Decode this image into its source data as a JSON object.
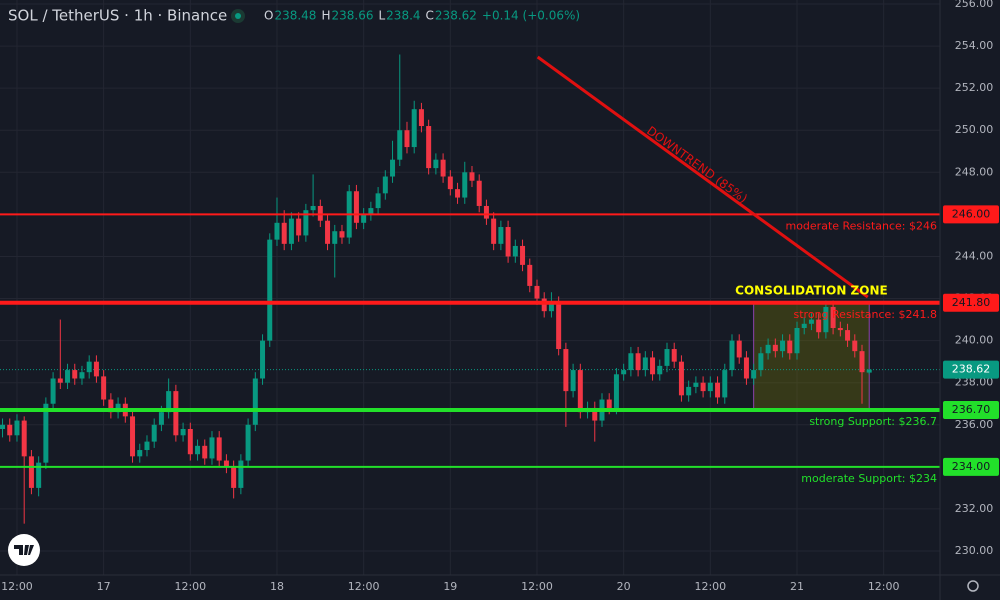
{
  "header": {
    "symbol": "SOL / TetherUS · 1h · Binance",
    "ohlc": [
      {
        "label": "O",
        "value": 238.48
      },
      {
        "label": "H",
        "value": 238.66
      },
      {
        "label": "L",
        "value": 238.4
      },
      {
        "label": "C",
        "value": 238.62
      }
    ],
    "change": "+0.14 (+0.06%)",
    "value_color": "#089981"
  },
  "chart_data": {
    "type": "candlestick",
    "up_color": "#089981",
    "down_color": "#f23645",
    "xlim": [
      -0.35,
      129.8
    ],
    "ylim": [
      228.86,
      256.19
    ],
    "grid": true,
    "xticks": [
      {
        "value": 2,
        "label": "12:00"
      },
      {
        "value": 14,
        "label": "17"
      },
      {
        "value": 26,
        "label": "12:00"
      },
      {
        "value": 38,
        "label": "18"
      },
      {
        "value": 50,
        "label": "12:00"
      },
      {
        "value": 62,
        "label": "19"
      },
      {
        "value": 74,
        "label": "12:00"
      },
      {
        "value": 86,
        "label": "20"
      },
      {
        "value": 98,
        "label": "12:00"
      },
      {
        "value": 110,
        "label": "21"
      },
      {
        "value": 122,
        "label": "12:00"
      }
    ],
    "yticks": [
      {
        "value": 230,
        "label": "230.00"
      },
      {
        "value": 232,
        "label": "232.00"
      },
      {
        "value": 234,
        "label": "234.00"
      },
      {
        "value": 236,
        "label": "236.00"
      },
      {
        "value": 238,
        "label": "238.00"
      },
      {
        "value": 240,
        "label": "240.00"
      },
      {
        "value": 242,
        "label": "242.00"
      },
      {
        "value": 244,
        "label": "244.00"
      },
      {
        "value": 246,
        "label": "246.00"
      },
      {
        "value": 248,
        "label": "248.00"
      },
      {
        "value": 250,
        "label": "250.00"
      },
      {
        "value": 252,
        "label": "252.00"
      },
      {
        "value": 254,
        "label": "254.00"
      },
      {
        "value": 256,
        "label": "256.00"
      }
    ],
    "candles": [
      [
        235.8,
        236.3,
        235.4,
        236.0
      ],
      [
        236.0,
        236.3,
        235.2,
        235.5
      ],
      [
        235.5,
        236.5,
        235.2,
        236.2
      ],
      [
        236.2,
        236.4,
        231.3,
        234.5
      ],
      [
        234.5,
        234.8,
        232.7,
        233.0
      ],
      [
        233.0,
        234.5,
        232.6,
        234.2
      ],
      [
        234.2,
        237.3,
        233.9,
        237.0
      ],
      [
        237.0,
        238.5,
        236.7,
        238.2
      ],
      [
        238.2,
        241.0,
        237.7,
        238.0
      ],
      [
        238.0,
        238.9,
        237.7,
        238.6
      ],
      [
        238.6,
        238.9,
        237.9,
        238.2
      ],
      [
        238.2,
        238.8,
        237.9,
        238.5
      ],
      [
        238.5,
        239.3,
        238.2,
        239.0
      ],
      [
        239.0,
        239.3,
        238.0,
        238.3
      ],
      [
        238.3,
        238.6,
        236.9,
        237.2
      ],
      [
        237.2,
        237.5,
        236.3,
        236.6
      ],
      [
        236.6,
        237.3,
        236.3,
        237.0
      ],
      [
        237.0,
        237.3,
        236.1,
        236.4
      ],
      [
        236.4,
        236.7,
        234.2,
        234.5
      ],
      [
        234.5,
        235.1,
        234.2,
        234.8
      ],
      [
        234.8,
        235.5,
        234.5,
        235.2
      ],
      [
        235.2,
        236.3,
        234.9,
        236.0
      ],
      [
        236.0,
        236.9,
        235.7,
        236.6
      ],
      [
        236.6,
        238.2,
        236.3,
        237.6
      ],
      [
        237.6,
        237.9,
        235.2,
        235.5
      ],
      [
        235.5,
        236.1,
        235.2,
        235.8
      ],
      [
        235.8,
        236.1,
        234.3,
        234.6
      ],
      [
        234.6,
        235.3,
        234.3,
        235.0
      ],
      [
        235.0,
        235.3,
        234.1,
        234.4
      ],
      [
        234.4,
        235.7,
        234.1,
        235.4
      ],
      [
        235.4,
        235.7,
        234.0,
        234.3
      ],
      [
        234.3,
        234.6,
        233.7,
        234.0
      ],
      [
        234.0,
        234.3,
        232.5,
        233.0
      ],
      [
        233.0,
        234.6,
        232.7,
        234.3
      ],
      [
        234.3,
        236.3,
        234.0,
        236.0
      ],
      [
        236.0,
        238.5,
        235.7,
        238.2
      ],
      [
        238.2,
        240.3,
        237.9,
        240.0
      ],
      [
        240.0,
        245.1,
        239.7,
        244.8
      ],
      [
        244.8,
        246.8,
        244.5,
        245.6
      ],
      [
        245.6,
        246.2,
        244.3,
        244.6
      ],
      [
        244.6,
        246.1,
        244.3,
        245.8
      ],
      [
        245.8,
        246.1,
        244.7,
        245.0
      ],
      [
        245.0,
        246.5,
        244.7,
        246.2
      ],
      [
        246.2,
        247.9,
        245.9,
        246.4
      ],
      [
        246.4,
        246.7,
        245.4,
        245.7
      ],
      [
        245.7,
        246.0,
        244.3,
        244.6
      ],
      [
        244.6,
        245.5,
        243.0,
        245.2
      ],
      [
        245.2,
        245.5,
        244.6,
        244.9
      ],
      [
        244.9,
        247.4,
        244.6,
        247.1
      ],
      [
        247.1,
        247.4,
        245.3,
        245.6
      ],
      [
        245.6,
        246.3,
        245.3,
        246.0
      ],
      [
        246.0,
        246.6,
        245.7,
        246.3
      ],
      [
        246.3,
        247.3,
        246.0,
        247.0
      ],
      [
        247.0,
        248.1,
        246.7,
        247.8
      ],
      [
        247.8,
        249.5,
        247.5,
        248.6
      ],
      [
        248.6,
        253.6,
        248.3,
        250.0
      ],
      [
        250.0,
        250.4,
        248.9,
        249.2
      ],
      [
        249.2,
        251.4,
        248.9,
        251.0
      ],
      [
        251.0,
        251.3,
        249.9,
        250.2
      ],
      [
        250.2,
        250.5,
        247.9,
        248.2
      ],
      [
        248.2,
        248.9,
        247.9,
        248.6
      ],
      [
        248.6,
        248.9,
        247.5,
        247.8
      ],
      [
        247.8,
        248.1,
        246.9,
        247.2
      ],
      [
        247.2,
        247.5,
        246.5,
        246.8
      ],
      [
        246.8,
        248.5,
        246.5,
        248.0
      ],
      [
        248.0,
        248.3,
        247.3,
        247.6
      ],
      [
        247.6,
        247.9,
        246.1,
        246.4
      ],
      [
        246.4,
        246.7,
        245.5,
        245.8
      ],
      [
        245.8,
        246.1,
        244.3,
        244.6
      ],
      [
        244.6,
        245.7,
        244.3,
        245.4
      ],
      [
        245.4,
        245.7,
        243.7,
        244.0
      ],
      [
        244.0,
        244.8,
        243.7,
        244.5
      ],
      [
        244.5,
        244.8,
        243.3,
        243.6
      ],
      [
        243.6,
        243.9,
        242.3,
        242.6
      ],
      [
        242.6,
        242.9,
        241.7,
        242.0
      ],
      [
        242.0,
        242.3,
        241.1,
        241.4
      ],
      [
        241.4,
        242.3,
        241.1,
        241.8
      ],
      [
        241.8,
        242.1,
        239.3,
        239.6
      ],
      [
        239.6,
        239.9,
        235.9,
        237.6
      ],
      [
        237.6,
        238.9,
        237.3,
        238.6
      ],
      [
        238.6,
        238.9,
        236.3,
        236.6
      ],
      [
        236.6,
        237.1,
        236.3,
        236.8
      ],
      [
        236.8,
        237.1,
        235.2,
        236.2
      ],
      [
        236.2,
        237.5,
        235.9,
        237.2
      ],
      [
        237.2,
        237.5,
        236.5,
        236.8
      ],
      [
        236.8,
        238.7,
        236.5,
        238.4
      ],
      [
        238.4,
        238.9,
        238.1,
        238.6
      ],
      [
        238.6,
        239.7,
        238.3,
        239.4
      ],
      [
        239.4,
        239.7,
        238.3,
        238.6
      ],
      [
        238.6,
        239.5,
        238.3,
        239.2
      ],
      [
        239.2,
        239.5,
        238.1,
        238.4
      ],
      [
        238.4,
        239.1,
        238.1,
        238.8
      ],
      [
        238.8,
        239.9,
        238.5,
        239.6
      ],
      [
        239.6,
        239.9,
        238.7,
        239.0
      ],
      [
        239.0,
        239.3,
        237.1,
        237.4
      ],
      [
        237.4,
        238.1,
        237.1,
        237.8
      ],
      [
        237.8,
        238.3,
        237.5,
        238.0
      ],
      [
        238.0,
        238.3,
        237.3,
        237.6
      ],
      [
        237.6,
        238.3,
        237.3,
        238.0
      ],
      [
        238.0,
        238.3,
        237.0,
        237.3
      ],
      [
        237.3,
        238.9,
        237.0,
        238.6
      ],
      [
        238.6,
        240.3,
        238.3,
        240.0
      ],
      [
        240.0,
        240.3,
        238.9,
        239.2
      ],
      [
        239.2,
        239.5,
        237.9,
        238.2
      ],
      [
        238.2,
        238.9,
        237.9,
        238.6
      ],
      [
        238.6,
        239.7,
        238.3,
        239.4
      ],
      [
        239.4,
        240.1,
        239.1,
        239.8
      ],
      [
        239.8,
        240.1,
        239.2,
        239.5
      ],
      [
        239.5,
        240.3,
        239.2,
        240.0
      ],
      [
        240.0,
        240.3,
        239.1,
        239.4
      ],
      [
        239.4,
        240.9,
        239.1,
        240.6
      ],
      [
        240.6,
        241.1,
        240.3,
        240.8
      ],
      [
        240.8,
        241.3,
        240.5,
        241.0
      ],
      [
        241.0,
        241.3,
        240.1,
        240.4
      ],
      [
        240.4,
        241.9,
        240.1,
        241.6
      ],
      [
        241.6,
        241.9,
        240.3,
        240.6
      ],
      [
        240.6,
        240.9,
        240.2,
        240.5
      ],
      [
        240.5,
        240.8,
        239.7,
        240.0
      ],
      [
        240.0,
        240.3,
        239.2,
        239.5
      ],
      [
        239.5,
        239.8,
        237.0,
        238.5
      ],
      [
        238.48,
        238.66,
        238.4,
        238.62
      ]
    ],
    "zone": {
      "label": "CONSOLIDATION ZONE",
      "x": [
        104,
        120
      ],
      "y": [
        236.7,
        241.8
      ],
      "color": "#ffff00"
    },
    "trendline": {
      "label": "DOWNTREND (85%)",
      "x": [
        74.1,
        119.8
      ],
      "y": [
        253.48,
        242.07
      ],
      "color": "#e01010"
    },
    "levels": [
      {
        "price": {
          "value": 246,
          "label": "246.00"
        },
        "text": "moderate Resistance: $246",
        "color": "#ff1a1a",
        "line_width": 2
      },
      {
        "price": {
          "value": 241.8,
          "label": "241.80"
        },
        "text": "strong Resistance: $241.8",
        "color": "#ff1a1a",
        "line_width": 4
      },
      {
        "price": {
          "value": 236.7,
          "label": "236.70"
        },
        "text": "strong Support: $236.7",
        "color": "#22e02a",
        "line_width": 4
      },
      {
        "price": {
          "value": 234,
          "label": "234.00"
        },
        "text": "moderate Support: $234",
        "color": "#22e02a",
        "line_width": 2
      }
    ],
    "current_price": {
      "value": 238.62,
      "label": "238.62",
      "color": "#089981"
    }
  }
}
